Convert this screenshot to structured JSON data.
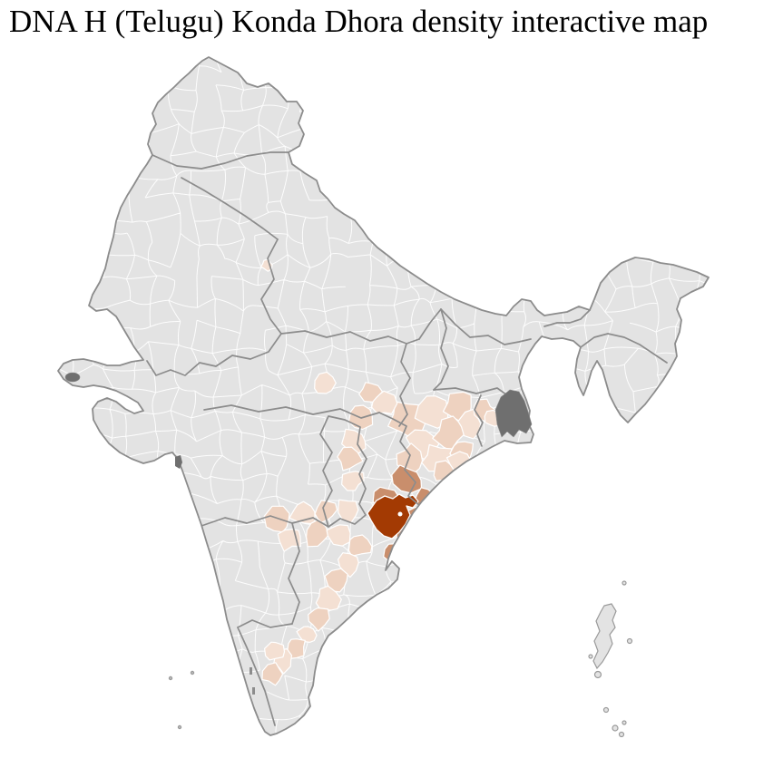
{
  "header": {
    "title": "DNA H (Telugu) Konda Dhora density interactive map"
  },
  "map": {
    "type": "choropleth",
    "region": "India, district level",
    "background_color": "#ffffff",
    "no_data_fill": "#e3e3e3",
    "district_border_color": "#ffffff",
    "state_border_color": "#8c8c8c",
    "coast_border_color": "#8c8c8c",
    "other_area_fill": "#6f6f6f",
    "density_scale": [
      "#f4e0d3",
      "#eed2c0",
      "#c98e6c",
      "#a33a03"
    ],
    "density_hotspot_note": "darkest shading on the east coast near the Andhra Pradesh / Odisha border, lighter shading across Odisha, coastal Andhra Pradesh, Chhattisgarh and northern Tamil Nadu"
  }
}
